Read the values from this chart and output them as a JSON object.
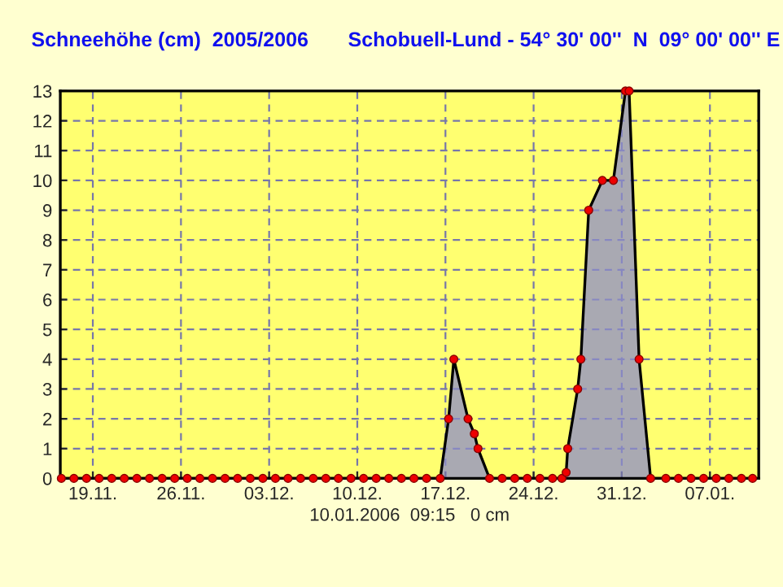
{
  "chart_data": {
    "type": "area",
    "title": "Schneehöhe (cm)  2005/2006       Schobuell-Lund - 54° 30' 00''  N  09° 00' 00'' E",
    "xlabel": "10.01.2006  09:15   0 cm",
    "x": [
      "2005-11-16T12:00",
      "2005-11-17T12:00",
      "2005-11-18T12:00",
      "2005-11-19T12:00",
      "2005-11-20T12:00",
      "2005-11-21T12:00",
      "2005-11-22T12:00",
      "2005-11-23T12:00",
      "2005-11-24T12:00",
      "2005-11-25T12:00",
      "2005-11-26T12:00",
      "2005-11-27T12:00",
      "2005-11-28T12:00",
      "2005-11-29T12:00",
      "2005-11-30T12:00",
      "2005-12-01T12:00",
      "2005-12-02T12:00",
      "2005-12-03T12:00",
      "2005-12-04T12:00",
      "2005-12-05T12:00",
      "2005-12-06T12:00",
      "2005-12-07T12:00",
      "2005-12-08T12:00",
      "2005-12-09T12:00",
      "2005-12-10T12:00",
      "2005-12-11T12:00",
      "2005-12-12T12:00",
      "2005-12-13T12:00",
      "2005-12-14T12:00",
      "2005-12-15T12:00",
      "2005-12-16T14:00",
      "2005-12-17T06:00",
      "2005-12-17T16:00",
      "2005-12-18T19:00",
      "2005-12-19T07:00",
      "2005-12-19T14:00",
      "2005-12-20T12:00",
      "2005-12-21T12:00",
      "2005-12-22T12:00",
      "2005-12-23T12:00",
      "2005-12-24T12:00",
      "2005-12-25T12:00",
      "2005-12-26T06:00",
      "2005-12-26T14:00",
      "2005-12-26T17:00",
      "2005-12-27T12:00",
      "2005-12-27T18:00",
      "2005-12-28T09:00",
      "2005-12-29T11:00",
      "2005-12-30T08:00",
      "2005-12-31T07:00",
      "2005-12-31T14:00",
      "2006-01-01T09:00",
      "2006-01-02T07:00",
      "2006-01-03T12:00",
      "2006-01-04T12:00",
      "2006-01-05T12:00",
      "2006-01-06T12:00",
      "2006-01-07T12:00",
      "2006-01-08T12:00",
      "2006-01-09T12:00",
      "2006-01-10T09:15"
    ],
    "series": [
      {
        "color": "#8c8cc8",
        "values": [
          0,
          0,
          0,
          0,
          0,
          0,
          0,
          0,
          0,
          0,
          0,
          0,
          0,
          0,
          0,
          0,
          0,
          0,
          0,
          0,
          0,
          0,
          0,
          0,
          0,
          0,
          0,
          0,
          0,
          0,
          0,
          2,
          4,
          2,
          1.5,
          1,
          0,
          0,
          0,
          0,
          0,
          0,
          0,
          0.2,
          1,
          3,
          4,
          9,
          10,
          10,
          13,
          13,
          4,
          0,
          0,
          0,
          0,
          0,
          0,
          0,
          0,
          0
        ]
      }
    ],
    "xlim": [
      "2005-11-16T10:00",
      "2006-01-10T21:00"
    ],
    "xticks": [
      {
        "value": "2005-11-19",
        "label": "19.11."
      },
      {
        "value": "2005-11-26",
        "label": "26.11."
      },
      {
        "value": "2005-12-03",
        "label": "03.12."
      },
      {
        "value": "2005-12-10",
        "label": "10.12."
      },
      {
        "value": "2005-12-17",
        "label": "17.12."
      },
      {
        "value": "2005-12-24",
        "label": "24.12."
      },
      {
        "value": "2005-12-31",
        "label": "31.12."
      },
      {
        "value": "2006-01-07",
        "label": "07.01."
      }
    ],
    "ylim": [
      0,
      13
    ],
    "yticks": [
      0,
      1,
      2,
      3,
      4,
      5,
      6,
      7,
      8,
      9,
      10,
      11,
      12,
      13
    ],
    "grid": true,
    "marker": "circle"
  }
}
